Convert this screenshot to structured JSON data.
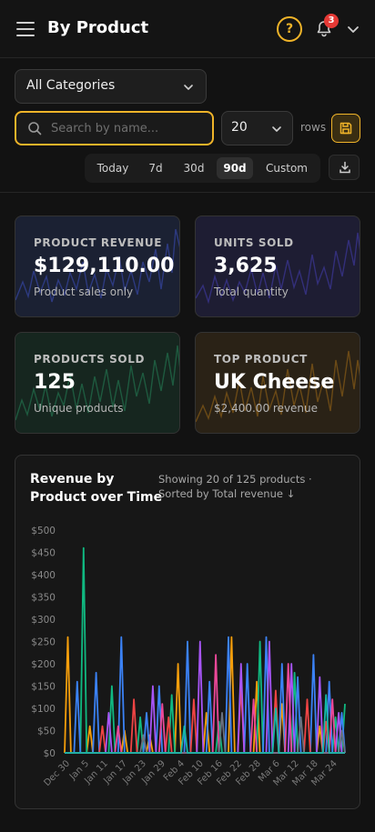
{
  "header": {
    "title": "By Product",
    "help_icon": "question-circle-icon",
    "notifications_icon": "bell-icon",
    "notification_count": "3",
    "account_icon": "chevron-down-icon"
  },
  "filters": {
    "category": "All Categories",
    "search_placeholder": "Search by name...",
    "search_value": "",
    "rows_value": "20",
    "rows_label": "rows",
    "date_ranges": [
      "Today",
      "7d",
      "30d",
      "90d",
      "Custom"
    ],
    "active_range": "90d"
  },
  "colors": {
    "accent": "#f0b429",
    "revenue_bg": "#1b2133",
    "units_bg": "#1e1d33",
    "products_bg": "#16261f",
    "top_bg": "#2a2216",
    "badge": "#e53935"
  },
  "kpis": [
    {
      "label": "PRODUCT REVENUE",
      "value": "$129,110.00",
      "sub": "Product sales only"
    },
    {
      "label": "UNITS SOLD",
      "value": "3,625",
      "sub": "Total quantity"
    },
    {
      "label": "PRODUCTS SOLD",
      "value": "125",
      "sub": "Unique products"
    },
    {
      "label": "TOP PRODUCT",
      "value": "UK Cheese",
      "sub": "$2,400.00 revenue"
    }
  ],
  "chart": {
    "title": "Revenue by Product over Time",
    "subtitle": "Showing 20 of 125 products · Sorted by Total revenue ↓"
  },
  "chart_data": {
    "type": "line",
    "title": "Revenue by Product over Time",
    "ylim": [
      0,
      500
    ],
    "y_ticks": [
      "$0",
      "$50",
      "$100",
      "$150",
      "$200",
      "$250",
      "$300",
      "$350",
      "$400",
      "$450",
      "$500"
    ],
    "x_ticks": [
      "Dec 30",
      "Jan 5",
      "Jan 11",
      "Jan 17",
      "Jan 23",
      "Jan 29",
      "Feb 4",
      "Feb 10",
      "Feb 16",
      "Feb 22",
      "Feb 28",
      "Mar 6",
      "Mar 12",
      "Mar 18",
      "Mar 24"
    ],
    "grid": false,
    "series": [
      {
        "color": "#f59e0b",
        "points": [
          [
            0,
            0
          ],
          [
            1,
            260
          ],
          [
            2,
            0
          ],
          [
            7,
            0
          ],
          [
            8,
            60
          ],
          [
            9,
            0
          ],
          [
            18,
            0
          ],
          [
            19,
            50
          ],
          [
            20,
            0
          ],
          [
            26,
            0
          ],
          [
            27,
            40
          ],
          [
            28,
            0
          ],
          [
            35,
            0
          ],
          [
            36,
            200
          ],
          [
            37,
            0
          ],
          [
            44,
            0
          ],
          [
            45,
            90
          ],
          [
            46,
            0
          ],
          [
            52,
            0
          ],
          [
            53,
            260
          ],
          [
            54,
            0
          ],
          [
            60,
            0
          ],
          [
            61,
            160
          ],
          [
            62,
            0
          ],
          [
            68,
            0
          ],
          [
            69,
            110
          ],
          [
            70,
            0
          ],
          [
            80,
            0
          ],
          [
            81,
            60
          ],
          [
            82,
            0
          ],
          [
            89,
            0
          ]
        ]
      },
      {
        "color": "#10b981",
        "points": [
          [
            0,
            0
          ],
          [
            5,
            0
          ],
          [
            6,
            460
          ],
          [
            7,
            0
          ],
          [
            14,
            0
          ],
          [
            15,
            150
          ],
          [
            16,
            0
          ],
          [
            23,
            0
          ],
          [
            24,
            80
          ],
          [
            25,
            0
          ],
          [
            33,
            0
          ],
          [
            34,
            130
          ],
          [
            35,
            0
          ],
          [
            48,
            0
          ],
          [
            49,
            70
          ],
          [
            50,
            0
          ],
          [
            61,
            0
          ],
          [
            62,
            250
          ],
          [
            63,
            0
          ],
          [
            72,
            0
          ],
          [
            73,
            180
          ],
          [
            74,
            0
          ],
          [
            85,
            0
          ],
          [
            86,
            80
          ],
          [
            87,
            0
          ],
          [
            88,
            0
          ],
          [
            89,
            110
          ]
        ]
      },
      {
        "color": "#3b82f6",
        "points": [
          [
            0,
            0
          ],
          [
            3,
            0
          ],
          [
            4,
            160
          ],
          [
            5,
            0
          ],
          [
            9,
            0
          ],
          [
            10,
            180
          ],
          [
            11,
            0
          ],
          [
            17,
            0
          ],
          [
            18,
            260
          ],
          [
            19,
            0
          ],
          [
            25,
            0
          ],
          [
            26,
            90
          ],
          [
            27,
            0
          ],
          [
            29,
            0
          ],
          [
            30,
            150
          ],
          [
            31,
            0
          ],
          [
            38,
            0
          ],
          [
            39,
            250
          ],
          [
            40,
            0
          ],
          [
            45,
            0
          ],
          [
            46,
            160
          ],
          [
            47,
            0
          ],
          [
            51,
            0
          ],
          [
            52,
            260
          ],
          [
            53,
            0
          ],
          [
            57,
            0
          ],
          [
            58,
            200
          ],
          [
            59,
            0
          ],
          [
            63,
            0
          ],
          [
            64,
            260
          ],
          [
            65,
            0
          ],
          [
            68,
            0
          ],
          [
            69,
            200
          ],
          [
            70,
            0
          ],
          [
            73,
            0
          ],
          [
            74,
            170
          ],
          [
            75,
            0
          ],
          [
            78,
            0
          ],
          [
            79,
            220
          ],
          [
            80,
            0
          ],
          [
            83,
            0
          ],
          [
            84,
            160
          ],
          [
            85,
            0
          ],
          [
            87,
            0
          ],
          [
            88,
            90
          ],
          [
            89,
            0
          ]
        ]
      },
      {
        "color": "#ef4444",
        "points": [
          [
            0,
            0
          ],
          [
            11,
            0
          ],
          [
            12,
            60
          ],
          [
            13,
            0
          ],
          [
            21,
            0
          ],
          [
            22,
            120
          ],
          [
            23,
            0
          ],
          [
            32,
            0
          ],
          [
            33,
            80
          ],
          [
            34,
            0
          ],
          [
            40,
            0
          ],
          [
            41,
            120
          ],
          [
            42,
            0
          ],
          [
            55,
            0
          ],
          [
            56,
            150
          ],
          [
            57,
            0
          ],
          [
            66,
            0
          ],
          [
            67,
            140
          ],
          [
            68,
            0
          ],
          [
            76,
            0
          ],
          [
            77,
            120
          ],
          [
            78,
            0
          ],
          [
            82,
            0
          ],
          [
            83,
            70
          ],
          [
            84,
            0
          ],
          [
            89,
            0
          ]
        ]
      },
      {
        "color": "#a855f7",
        "points": [
          [
            0,
            0
          ],
          [
            13,
            0
          ],
          [
            14,
            90
          ],
          [
            15,
            0
          ],
          [
            27,
            0
          ],
          [
            28,
            150
          ],
          [
            29,
            0
          ],
          [
            42,
            0
          ],
          [
            43,
            250
          ],
          [
            44,
            0
          ],
          [
            55,
            0
          ],
          [
            56,
            200
          ],
          [
            57,
            0
          ],
          [
            64,
            0
          ],
          [
            65,
            250
          ],
          [
            66,
            0
          ],
          [
            71,
            0
          ],
          [
            72,
            200
          ],
          [
            73,
            0
          ],
          [
            80,
            0
          ],
          [
            81,
            170
          ],
          [
            82,
            0
          ],
          [
            86,
            0
          ],
          [
            87,
            90
          ],
          [
            88,
            0
          ],
          [
            89,
            0
          ]
        ]
      },
      {
        "color": "#ec4899",
        "points": [
          [
            0,
            0
          ],
          [
            16,
            0
          ],
          [
            17,
            60
          ],
          [
            18,
            0
          ],
          [
            30,
            0
          ],
          [
            31,
            110
          ],
          [
            32,
            0
          ],
          [
            47,
            0
          ],
          [
            48,
            220
          ],
          [
            49,
            0
          ],
          [
            59,
            0
          ],
          [
            60,
            120
          ],
          [
            61,
            0
          ],
          [
            70,
            0
          ],
          [
            71,
            200
          ],
          [
            72,
            0
          ],
          [
            84,
            0
          ],
          [
            85,
            120
          ],
          [
            86,
            0
          ],
          [
            89,
            0
          ]
        ]
      },
      {
        "color": "#6b7280",
        "points": [
          [
            0,
            0
          ],
          [
            24,
            0
          ],
          [
            25,
            40
          ],
          [
            26,
            0
          ],
          [
            49,
            0
          ],
          [
            50,
            90
          ],
          [
            51,
            0
          ],
          [
            74,
            0
          ],
          [
            75,
            80
          ],
          [
            76,
            0
          ],
          [
            87,
            0
          ],
          [
            88,
            50
          ],
          [
            89,
            0
          ]
        ]
      },
      {
        "color": "#14b8a6",
        "points": [
          [
            0,
            0
          ],
          [
            37,
            0
          ],
          [
            38,
            60
          ],
          [
            39,
            0
          ],
          [
            66,
            0
          ],
          [
            67,
            100
          ],
          [
            68,
            0
          ],
          [
            82,
            0
          ],
          [
            83,
            130
          ],
          [
            84,
            0
          ],
          [
            89,
            0
          ]
        ]
      }
    ]
  }
}
